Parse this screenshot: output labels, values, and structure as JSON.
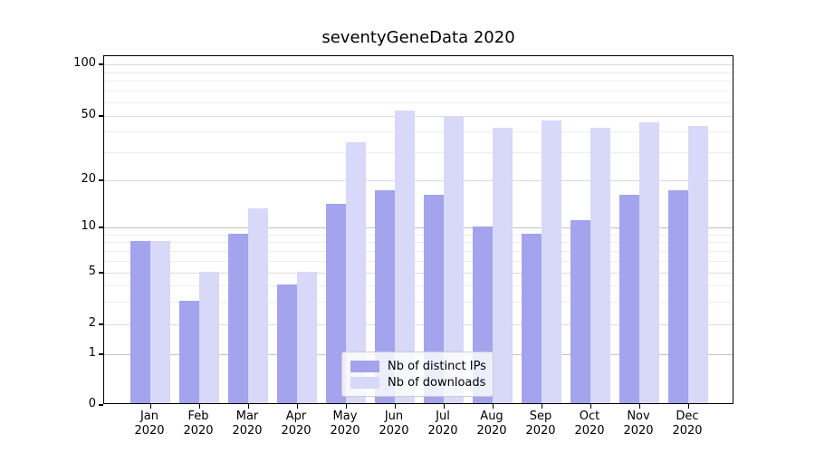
{
  "title": "seventyGeneData 2020",
  "chart_data": {
    "type": "bar",
    "title": "seventyGeneData 2020",
    "categories": [
      "Jan",
      "Feb",
      "Mar",
      "Apr",
      "May",
      "Jun",
      "Jul",
      "Aug",
      "Sep",
      "Oct",
      "Nov",
      "Dec"
    ],
    "x_tick_line2": "2020",
    "series": [
      {
        "name": "Nb of distinct IPs",
        "color": "#a3a3ee",
        "values": [
          8,
          3,
          9,
          4,
          14,
          17,
          16,
          10,
          9,
          11,
          16,
          17
        ]
      },
      {
        "name": "Nb of downloads",
        "color": "#d8d8f8",
        "values": [
          8,
          5,
          13,
          5,
          34,
          53,
          49,
          42,
          46,
          42,
          45,
          43
        ]
      }
    ],
    "y_scale": "symlog",
    "y_major_ticks": [
      0,
      1,
      2,
      5,
      10,
      20,
      50,
      100
    ],
    "y_major_tick_labels": [
      "0",
      "1",
      "2",
      "5",
      "10",
      "20",
      "50",
      "100"
    ],
    "y_minor_gridlines": [
      3,
      4,
      6,
      7,
      8,
      9,
      30,
      40,
      60,
      70,
      80,
      90
    ],
    "ylim": [
      0,
      112
    ],
    "xlabel": "",
    "ylabel": "",
    "grid": "horizontal",
    "legend_position": "lower center"
  }
}
